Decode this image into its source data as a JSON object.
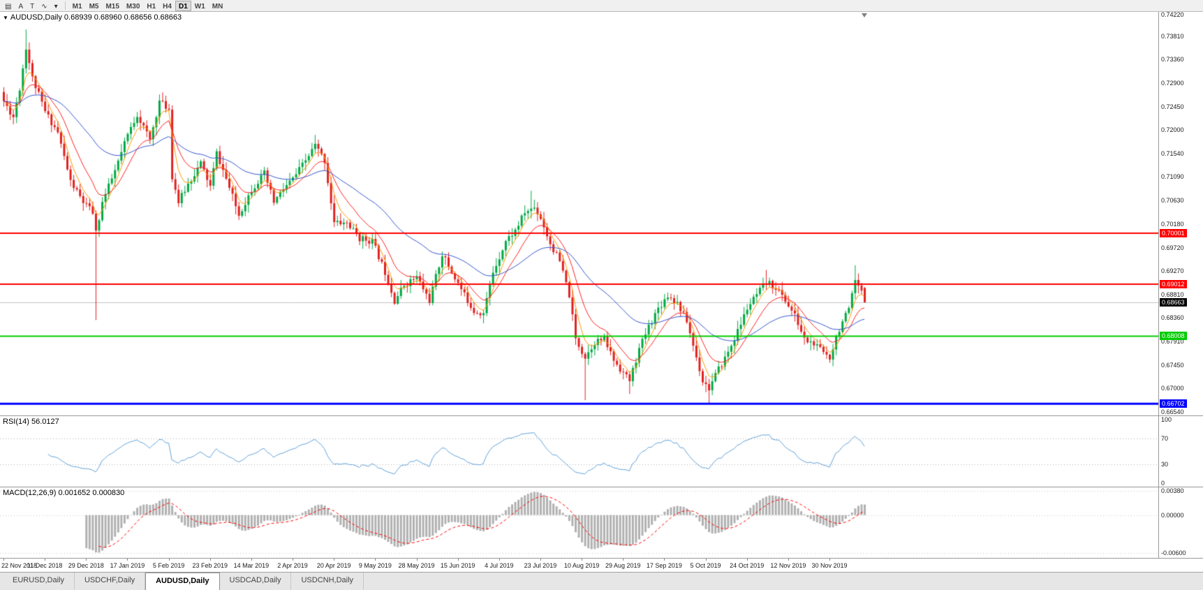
{
  "toolbar": {
    "tool_buttons": [
      {
        "name": "chart-window-icon",
        "glyph": "▤"
      },
      {
        "name": "cursor-tool-button",
        "glyph": "A"
      },
      {
        "name": "text-tool-button",
        "glyph": "T"
      },
      {
        "name": "indicator-tool-button",
        "glyph": "∿"
      },
      {
        "name": "indicator-dropdown-chevron",
        "glyph": "▾"
      }
    ],
    "timeframes": [
      "M1",
      "M5",
      "M15",
      "M30",
      "H1",
      "H4",
      "D1",
      "W1",
      "MN"
    ],
    "active_timeframe": "D1"
  },
  "chart": {
    "title": "AUDUSD,Daily 0.68939 0.68960 0.68656 0.68663",
    "symbol": "AUDUSD",
    "period": "Daily",
    "ohlc": {
      "open": "0.68939",
      "high": "0.68960",
      "low": "0.68656",
      "close": "0.68663"
    },
    "y_axis_ticks": [
      "0.74220",
      "0.73810",
      "0.73360",
      "0.72900",
      "0.72450",
      "0.72000",
      "0.71540",
      "0.71090",
      "0.70630",
      "0.70180",
      "0.69720",
      "0.69270",
      "0.68810",
      "0.68360",
      "0.67910",
      "0.67450",
      "0.67000",
      "0.66540"
    ],
    "price_levels": [
      {
        "label": "0.70001",
        "value": 0.70001,
        "color": "#ff0000",
        "width": 2
      },
      {
        "label": "0.69012",
        "value": 0.69012,
        "color": "#ff0000",
        "width": 2
      },
      {
        "label": "0.68008",
        "value": 0.68008,
        "color": "#00cc00",
        "width": 2
      },
      {
        "label": "0.66702",
        "value": 0.66702,
        "color": "#0000ff",
        "width": 3
      }
    ],
    "current_price": {
      "label": "0.68663",
      "value": 0.68663,
      "line_color": "#c0c0c0",
      "box_color": "#000000"
    },
    "up_color": "#00a843",
    "down_color": "#e02020"
  },
  "rsi": {
    "label": "RSI(14) 56.0127",
    "current": 56.0127,
    "axis_labels": [
      "100",
      "70",
      "30",
      "0"
    ],
    "upper_level": 70,
    "lower_level": 30,
    "line_color": "#5fa0d8",
    "level_line_color": "#b0b0b0"
  },
  "macd": {
    "label": "MACD(12,26,9) 0.001652 0.000830",
    "current_macd": 0.001652,
    "current_signal": 0.00083,
    "axis_labels": [
      "0.00380",
      "0.00000",
      "-0.00600"
    ],
    "axis_values": [
      0.0038,
      0.0,
      -0.006
    ],
    "histogram_color": "#b0b0b0",
    "signal_color": "#ff0000"
  },
  "tabs": [
    {
      "label": "EURUSD,Daily",
      "active": false
    },
    {
      "label": "USDCHF,Daily",
      "active": false
    },
    {
      "label": "AUDUSD,Daily",
      "active": true
    },
    {
      "label": "USDCAD,Daily",
      "active": false
    },
    {
      "label": "USDCNH,Daily",
      "active": false
    }
  ],
  "chart_data": {
    "type": "candlestick",
    "symbol": "AUDUSD",
    "timeframe": "Daily",
    "bars_total": 272,
    "price_axis": {
      "min": 0.66475,
      "max": 0.7428
    },
    "x_labels": [
      {
        "bar": 0,
        "label": "22 Nov 2018"
      },
      {
        "bar": 13,
        "label": "11 Dec 2018"
      },
      {
        "bar": 26,
        "label": "29 Dec 2018"
      },
      {
        "bar": 39,
        "label": "17 Jan 2019"
      },
      {
        "bar": 52,
        "label": "5 Feb 2019"
      },
      {
        "bar": 65,
        "label": "23 Feb 2019"
      },
      {
        "bar": 78,
        "label": "14 Mar 2019"
      },
      {
        "bar": 91,
        "label": "2 Apr 2019"
      },
      {
        "bar": 104,
        "label": "20 Apr 2019"
      },
      {
        "bar": 117,
        "label": "9 May 2019"
      },
      {
        "bar": 130,
        "label": "28 May 2019"
      },
      {
        "bar": 143,
        "label": "15 Jun 2019"
      },
      {
        "bar": 156,
        "label": "4 Jul 2019"
      },
      {
        "bar": 169,
        "label": "23 Jul 2019"
      },
      {
        "bar": 182,
        "label": "10 Aug 2019"
      },
      {
        "bar": 195,
        "label": "29 Aug 2019"
      },
      {
        "bar": 208,
        "label": "17 Sep 2019"
      },
      {
        "bar": 221,
        "label": "5 Oct 2019"
      },
      {
        "bar": 234,
        "label": "24 Oct 2019"
      },
      {
        "bar": 247,
        "label": "12 Nov 2019"
      },
      {
        "bar": 260,
        "label": "30 Nov 2019"
      }
    ],
    "close_path_anchors": [
      [
        0,
        0.7255
      ],
      [
        3,
        0.7225
      ],
      [
        5,
        0.728
      ],
      [
        7,
        0.736
      ],
      [
        9,
        0.73
      ],
      [
        13,
        0.7235
      ],
      [
        17,
        0.7195
      ],
      [
        21,
        0.71
      ],
      [
        25,
        0.706
      ],
      [
        28,
        0.704
      ],
      [
        29,
        0.7
      ],
      [
        31,
        0.706
      ],
      [
        35,
        0.712
      ],
      [
        39,
        0.719
      ],
      [
        42,
        0.723
      ],
      [
        46,
        0.718
      ],
      [
        49,
        0.7255
      ],
      [
        52,
        0.724
      ],
      [
        53,
        0.711
      ],
      [
        55,
        0.706
      ],
      [
        58,
        0.7095
      ],
      [
        62,
        0.7135
      ],
      [
        65,
        0.709
      ],
      [
        67,
        0.7155
      ],
      [
        70,
        0.7105
      ],
      [
        74,
        0.7035
      ],
      [
        78,
        0.7085
      ],
      [
        82,
        0.7115
      ],
      [
        85,
        0.706
      ],
      [
        88,
        0.7085
      ],
      [
        91,
        0.7105
      ],
      [
        95,
        0.714
      ],
      [
        98,
        0.717
      ],
      [
        101,
        0.714
      ],
      [
        104,
        0.702
      ],
      [
        108,
        0.702
      ],
      [
        112,
        0.699
      ],
      [
        116,
        0.6985
      ],
      [
        120,
        0.6925
      ],
      [
        123,
        0.687
      ],
      [
        126,
        0.69
      ],
      [
        130,
        0.6915
      ],
      [
        134,
        0.687
      ],
      [
        138,
        0.696
      ],
      [
        141,
        0.6925
      ],
      [
        145,
        0.688
      ],
      [
        148,
        0.685
      ],
      [
        151,
        0.6845
      ],
      [
        154,
        0.6925
      ],
      [
        158,
        0.6985
      ],
      [
        161,
        0.7005
      ],
      [
        164,
        0.704
      ],
      [
        167,
        0.705
      ],
      [
        169,
        0.703
      ],
      [
        172,
        0.698
      ],
      [
        175,
        0.6945
      ],
      [
        178,
        0.688
      ],
      [
        180,
        0.6795
      ],
      [
        183,
        0.676
      ],
      [
        186,
        0.679
      ],
      [
        189,
        0.6795
      ],
      [
        192,
        0.6755
      ],
      [
        195,
        0.673
      ],
      [
        197,
        0.6715
      ],
      [
        200,
        0.6775
      ],
      [
        203,
        0.682
      ],
      [
        206,
        0.6855
      ],
      [
        209,
        0.688
      ],
      [
        212,
        0.6865
      ],
      [
        215,
        0.683
      ],
      [
        218,
        0.676
      ],
      [
        220,
        0.6715
      ],
      [
        222,
        0.67
      ],
      [
        224,
        0.6725
      ],
      [
        228,
        0.677
      ],
      [
        231,
        0.681
      ],
      [
        234,
        0.6855
      ],
      [
        237,
        0.688
      ],
      [
        240,
        0.6905
      ],
      [
        243,
        0.6895
      ],
      [
        246,
        0.687
      ],
      [
        249,
        0.684
      ],
      [
        252,
        0.6795
      ],
      [
        255,
        0.6785
      ],
      [
        258,
        0.677
      ],
      [
        260,
        0.676
      ],
      [
        262,
        0.68
      ],
      [
        264,
        0.683
      ],
      [
        266,
        0.685
      ],
      [
        268,
        0.6905
      ],
      [
        270,
        0.6885
      ],
      [
        271,
        0.68663
      ]
    ],
    "wick_extremes": [
      {
        "bar": 7,
        "high": 0.7394
      },
      {
        "bar": 29,
        "low": 0.6832
      },
      {
        "bar": 98,
        "high": 0.719
      },
      {
        "bar": 151,
        "low": 0.6832
      },
      {
        "bar": 166,
        "high": 0.7082
      },
      {
        "bar": 183,
        "low": 0.6677
      },
      {
        "bar": 197,
        "low": 0.6689
      },
      {
        "bar": 222,
        "low": 0.6671
      },
      {
        "bar": 240,
        "high": 0.6929
      },
      {
        "bar": 268,
        "high": 0.6938
      }
    ],
    "last_bar": {
      "open": 0.68939,
      "high": 0.6896,
      "low": 0.68656,
      "close": 0.68663
    },
    "horizontal_lines": [
      0.70001,
      0.69012,
      0.68008,
      0.66702
    ],
    "moving_averages": [
      {
        "type": "ema",
        "period": 5,
        "color": "#ff9900"
      },
      {
        "type": "ema",
        "period": 12,
        "color": "#ff2020"
      },
      {
        "type": "ema",
        "period": 40,
        "color": "#3355cc"
      }
    ],
    "indicators": [
      {
        "name": "RSI",
        "period": 14,
        "current": 56.0127,
        "levels": [
          70,
          30
        ]
      },
      {
        "name": "MACD",
        "fast": 12,
        "slow": 26,
        "signal": 9,
        "current_macd": 0.001652,
        "current_signal": 0.00083,
        "scale_labels": [
          0.0038,
          0.0,
          -0.006
        ]
      }
    ]
  }
}
